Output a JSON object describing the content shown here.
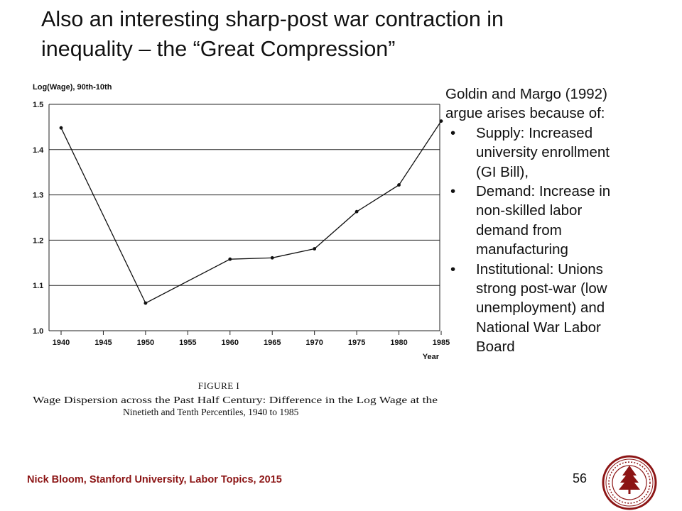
{
  "slide": {
    "title_lines": [
      "Also an interesting sharp-post war contraction in",
      "inequality – the “Great Compression”"
    ],
    "footer": "Nick Bloom, Stanford University, Labor Topics, 2015",
    "page_number": "56",
    "colors": {
      "footer": "#8c1515",
      "seal": "#8c1515"
    }
  },
  "side_text": {
    "intro_lines": [
      "Goldin and Margo (1992)",
      "argue arises because of:"
    ],
    "bullets": [
      {
        "lines": [
          "Supply: Increased",
          "university enrollment",
          "(GI Bill),"
        ]
      },
      {
        "lines": [
          "Demand: Increase in",
          "non-skilled labor",
          "demand from",
          "manufacturing"
        ]
      },
      {
        "lines": [
          "Institutional: Unions",
          "strong post-war (low",
          "unemployment) and",
          "National War Labor",
          "Board"
        ]
      }
    ]
  },
  "chart_data": {
    "type": "line",
    "ylabel": "Log(Wage), 90th-10th",
    "xlabel": "Year",
    "x_ticks": [
      "1940",
      "1945",
      "1950",
      "1955",
      "1960",
      "1965",
      "1970",
      "1975",
      "1980",
      "1985"
    ],
    "y_ticks": [
      "1.0",
      "1.1",
      "1.2",
      "1.3",
      "1.4",
      "1.5"
    ],
    "xlim": [
      1940,
      1985
    ],
    "ylim": [
      1.0,
      1.5
    ],
    "grid": true,
    "series": [
      {
        "x": [
          1940,
          1950,
          1960,
          1965,
          1970,
          1975,
          1980,
          1985
        ],
        "values": [
          1.448,
          1.061,
          1.158,
          1.161,
          1.181,
          1.263,
          1.322,
          1.463
        ]
      }
    ],
    "figure_label": "FIGURE I",
    "caption_lines": [
      "Wage Dispersion across the Past Half Century: Difference in the Log Wage at the",
      "Ninetieth and Tenth Percentiles, 1940 to 1985"
    ]
  }
}
